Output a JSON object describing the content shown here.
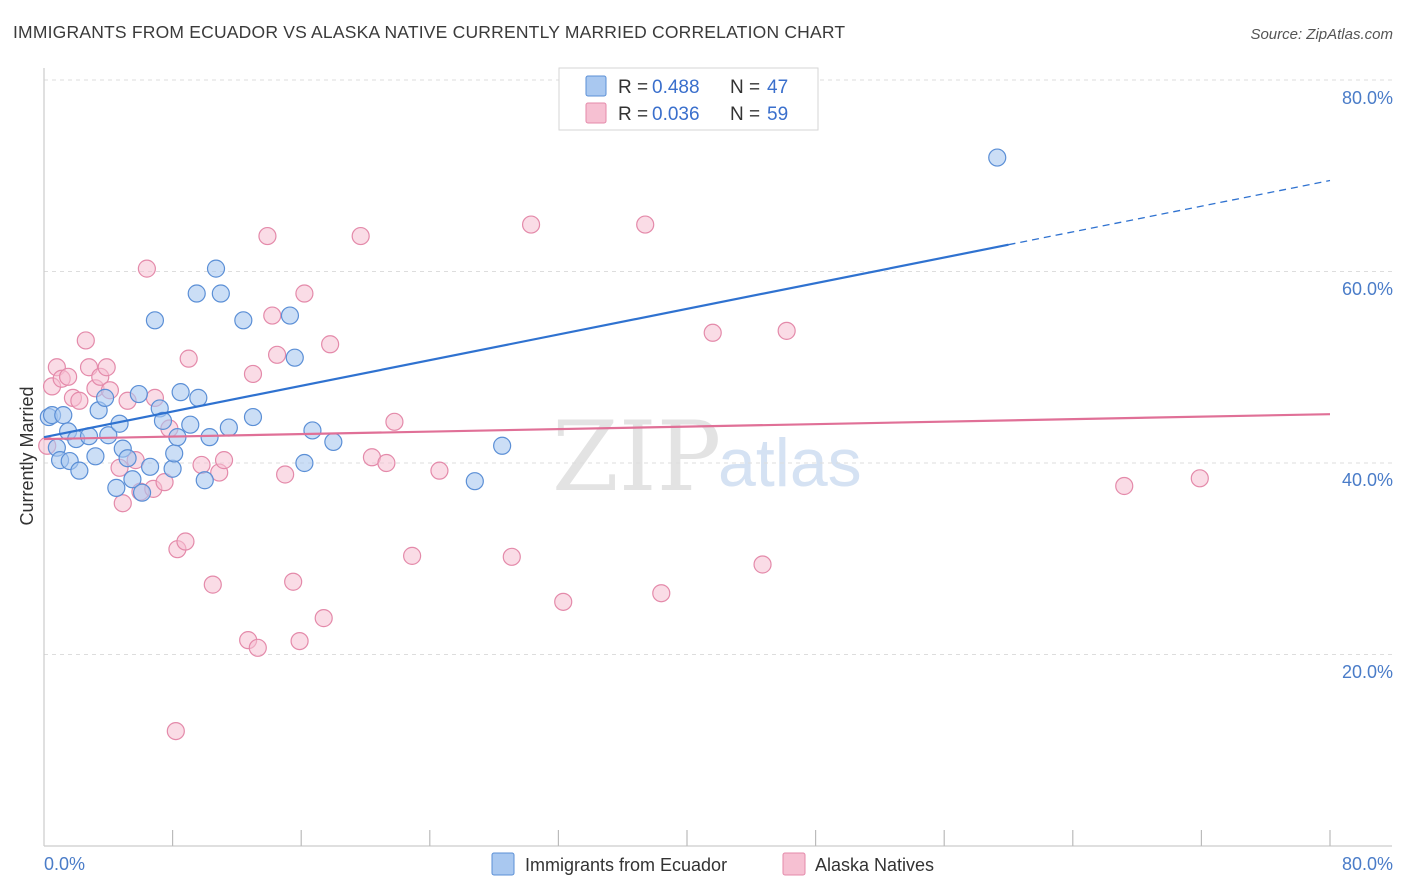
{
  "title": "IMMIGRANTS FROM ECUADOR VS ALASKA NATIVE CURRENTLY MARRIED CORRELATION CHART",
  "source": "Source: ZipAtlas.com",
  "watermark": {
    "zip": "ZIP",
    "atlas": "atlas"
  },
  "colors": {
    "blue_fill": "#a9c8f0",
    "blue_stroke": "#5b8fd6",
    "blue_line": "#2f72d0",
    "pink_fill": "#f6c0d2",
    "pink_stroke": "#e48aaa",
    "pink_line": "#e07097",
    "grid": "#dddddd",
    "axis_text": "#4a7cc8"
  },
  "legend": {
    "r_label": "R =",
    "n_label": "N =",
    "rows": [
      {
        "r": "0.488",
        "n": "47"
      },
      {
        "r": "0.036",
        "n": "59"
      }
    ]
  },
  "chart_data": {
    "type": "scatter",
    "title": "IMMIGRANTS FROM ECUADOR VS ALASKA NATIVE CURRENTLY MARRIED CORRELATION CHART",
    "xlabel": "",
    "ylabel": "Currently Married",
    "xlim": [
      0,
      80
    ],
    "ylim": [
      0,
      80
    ],
    "x_tick_labels": [
      "0.0%",
      "80.0%"
    ],
    "y_tick_labels": [
      "20.0%",
      "40.0%",
      "60.0%",
      "80.0%"
    ],
    "y_ticks": [
      20,
      40,
      60,
      80
    ],
    "grid": true,
    "legend_position": "top-center",
    "series": [
      {
        "name": "Immigrants from Ecuador",
        "r": 0.488,
        "n": 47,
        "trend": {
          "x0": 0,
          "y0": 42.7,
          "x1": 60,
          "y1": 62.8,
          "dash_to_x": 80,
          "dash_to_y": 69.5
        },
        "points": [
          [
            0.3,
            44.8
          ],
          [
            0.5,
            45.0
          ],
          [
            0.8,
            41.6
          ],
          [
            1.0,
            40.3
          ],
          [
            1.2,
            45.0
          ],
          [
            1.5,
            43.3
          ],
          [
            1.6,
            40.2
          ],
          [
            2.0,
            42.5
          ],
          [
            2.2,
            39.2
          ],
          [
            2.8,
            42.8
          ],
          [
            3.2,
            40.7
          ],
          [
            3.4,
            45.5
          ],
          [
            3.8,
            46.8
          ],
          [
            4.0,
            42.9
          ],
          [
            4.5,
            37.4
          ],
          [
            4.7,
            44.1
          ],
          [
            4.9,
            41.5
          ],
          [
            5.2,
            40.5
          ],
          [
            5.5,
            38.3
          ],
          [
            5.9,
            47.2
          ],
          [
            6.1,
            36.9
          ],
          [
            6.6,
            39.6
          ],
          [
            6.9,
            54.9
          ],
          [
            7.2,
            45.7
          ],
          [
            7.4,
            44.4
          ],
          [
            8.0,
            39.4
          ],
          [
            8.1,
            41.0
          ],
          [
            8.3,
            42.7
          ],
          [
            8.5,
            47.4
          ],
          [
            9.1,
            44.0
          ],
          [
            9.5,
            57.7
          ],
          [
            9.6,
            46.8
          ],
          [
            10.0,
            38.2
          ],
          [
            10.3,
            42.7
          ],
          [
            10.7,
            60.3
          ],
          [
            11.0,
            57.7
          ],
          [
            11.5,
            43.7
          ],
          [
            12.4,
            54.9
          ],
          [
            13.0,
            44.8
          ],
          [
            15.3,
            55.4
          ],
          [
            15.6,
            51.0
          ],
          [
            16.2,
            40.0
          ],
          [
            16.7,
            43.4
          ],
          [
            18.0,
            42.2
          ],
          [
            26.8,
            38.1
          ],
          [
            28.5,
            41.8
          ],
          [
            59.3,
            71.9
          ]
        ]
      },
      {
        "name": "Alaska Natives",
        "r": 0.036,
        "n": 59,
        "trend": {
          "x0": 0,
          "y0": 42.5,
          "x1": 80,
          "y1": 45.1
        },
        "points": [
          [
            0.2,
            41.8
          ],
          [
            0.5,
            48.0
          ],
          [
            0.8,
            50.0
          ],
          [
            1.1,
            48.8
          ],
          [
            1.5,
            49.0
          ],
          [
            1.8,
            46.8
          ],
          [
            2.2,
            46.5
          ],
          [
            2.6,
            52.8
          ],
          [
            2.8,
            50.0
          ],
          [
            3.2,
            47.8
          ],
          [
            3.5,
            49.0
          ],
          [
            3.9,
            50.0
          ],
          [
            4.1,
            47.6
          ],
          [
            4.7,
            39.5
          ],
          [
            4.9,
            35.8
          ],
          [
            5.2,
            46.5
          ],
          [
            5.7,
            40.3
          ],
          [
            6.0,
            37.0
          ],
          [
            6.4,
            60.3
          ],
          [
            6.8,
            37.3
          ],
          [
            6.9,
            46.8
          ],
          [
            7.5,
            38.0
          ],
          [
            7.8,
            43.6
          ],
          [
            8.2,
            12.0
          ],
          [
            8.3,
            31.0
          ],
          [
            8.8,
            31.8
          ],
          [
            9.0,
            50.9
          ],
          [
            9.8,
            39.8
          ],
          [
            10.5,
            27.3
          ],
          [
            10.9,
            39.0
          ],
          [
            11.2,
            40.3
          ],
          [
            12.7,
            21.5
          ],
          [
            13.0,
            49.3
          ],
          [
            13.3,
            20.7
          ],
          [
            13.9,
            63.7
          ],
          [
            14.2,
            55.4
          ],
          [
            14.5,
            51.3
          ],
          [
            15.0,
            38.8
          ],
          [
            15.5,
            27.6
          ],
          [
            15.9,
            21.4
          ],
          [
            16.2,
            57.7
          ],
          [
            17.4,
            23.8
          ],
          [
            17.8,
            52.4
          ],
          [
            19.7,
            63.7
          ],
          [
            20.4,
            40.6
          ],
          [
            21.3,
            40.0
          ],
          [
            21.8,
            44.3
          ],
          [
            22.9,
            30.3
          ],
          [
            24.6,
            39.2
          ],
          [
            29.1,
            30.2
          ],
          [
            30.3,
            64.9
          ],
          [
            32.3,
            25.5
          ],
          [
            37.4,
            64.9
          ],
          [
            38.4,
            26.4
          ],
          [
            41.6,
            53.6
          ],
          [
            44.7,
            29.4
          ],
          [
            46.2,
            53.8
          ],
          [
            67.2,
            37.6
          ],
          [
            71.9,
            38.4
          ]
        ]
      }
    ]
  },
  "bottom_legend": [
    "Immigrants from Ecuador",
    "Alaska Natives"
  ]
}
